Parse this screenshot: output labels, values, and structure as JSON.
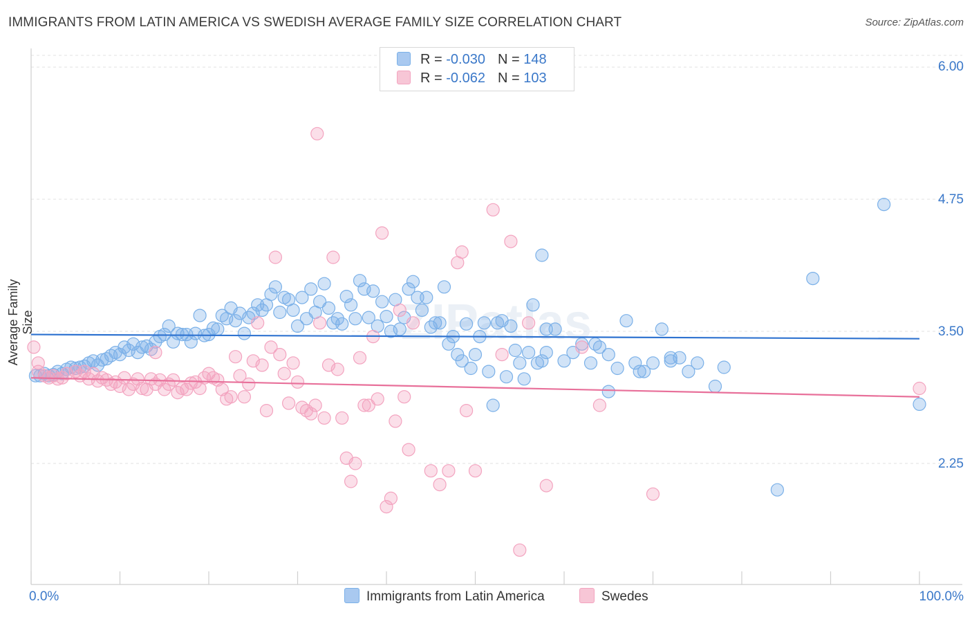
{
  "chart_data": {
    "type": "scatter",
    "title": "IMMIGRANTS FROM LATIN AMERICA VS SWEDISH AVERAGE FAMILY SIZE CORRELATION CHART",
    "source": "Source: ZipAtlas.com",
    "xlabel": "",
    "ylabel": "Average Family Size",
    "xlim": [
      0,
      100
    ],
    "ylim": [
      1.0,
      6.2
    ],
    "y_ticks": [
      2.25,
      3.5,
      4.75,
      6.0
    ],
    "y_tick_labels": [
      "2.25",
      "3.50",
      "4.75",
      "6.00"
    ],
    "x_tick_labels": [
      "0.0%",
      "100.0%"
    ],
    "watermark": "ZIPatlas",
    "legend_stats": [
      {
        "r_label": "R = ",
        "r_value": "-0.030",
        "n_label": "N = ",
        "n_value": "148"
      },
      {
        "r_label": "R = ",
        "r_value": "-0.062",
        "n_label": "N = ",
        "n_value": "103"
      }
    ],
    "series": [
      {
        "name": "Immigrants from Latin America",
        "color": "#7ab0e8",
        "line_color": "#2f73d0",
        "trend": {
          "x0": 0,
          "y0": 3.47,
          "x1": 100,
          "y1": 3.43
        },
        "points": [
          [
            0.5,
            3.08
          ],
          [
            1.0,
            3.08
          ],
          [
            1.5,
            3.1
          ],
          [
            2.0,
            3.08
          ],
          [
            2.5,
            3.09
          ],
          [
            3.0,
            3.12
          ],
          [
            3.5,
            3.1
          ],
          [
            4.0,
            3.14
          ],
          [
            4.5,
            3.16
          ],
          [
            5.0,
            3.15
          ],
          [
            5.5,
            3.16
          ],
          [
            6.0,
            3.17
          ],
          [
            6.5,
            3.2
          ],
          [
            7.0,
            3.22
          ],
          [
            7.5,
            3.18
          ],
          [
            8.0,
            3.23
          ],
          [
            8.5,
            3.24
          ],
          [
            9.0,
            3.27
          ],
          [
            9.5,
            3.3
          ],
          [
            10.0,
            3.28
          ],
          [
            10.5,
            3.35
          ],
          [
            11.0,
            3.32
          ],
          [
            11.5,
            3.38
          ],
          [
            12.0,
            3.3
          ],
          [
            12.5,
            3.35
          ],
          [
            13.0,
            3.36
          ],
          [
            13.5,
            3.33
          ],
          [
            14.0,
            3.4
          ],
          [
            14.5,
            3.45
          ],
          [
            15.0,
            3.47
          ],
          [
            15.5,
            3.55
          ],
          [
            16.0,
            3.4
          ],
          [
            16.5,
            3.48
          ],
          [
            17.0,
            3.47
          ],
          [
            17.5,
            3.47
          ],
          [
            18.0,
            3.4
          ],
          [
            18.5,
            3.48
          ],
          [
            19.0,
            3.65
          ],
          [
            19.5,
            3.46
          ],
          [
            20.0,
            3.47
          ],
          [
            20.5,
            3.53
          ],
          [
            21.0,
            3.52
          ],
          [
            21.5,
            3.65
          ],
          [
            22.0,
            3.62
          ],
          [
            22.5,
            3.72
          ],
          [
            23.0,
            3.6
          ],
          [
            23.5,
            3.67
          ],
          [
            24.0,
            3.48
          ],
          [
            24.5,
            3.63
          ],
          [
            25.0,
            3.67
          ],
          [
            25.5,
            3.75
          ],
          [
            26.0,
            3.7
          ],
          [
            26.5,
            3.75
          ],
          [
            27.0,
            3.85
          ],
          [
            27.5,
            3.92
          ],
          [
            28.0,
            3.68
          ],
          [
            28.5,
            3.82
          ],
          [
            29.0,
            3.8
          ],
          [
            29.5,
            3.7
          ],
          [
            30.0,
            3.55
          ],
          [
            30.5,
            3.82
          ],
          [
            31.0,
            3.62
          ],
          [
            31.5,
            3.9
          ],
          [
            32.0,
            3.68
          ],
          [
            32.5,
            3.78
          ],
          [
            33.0,
            3.95
          ],
          [
            33.5,
            3.72
          ],
          [
            34.0,
            3.58
          ],
          [
            34.5,
            3.62
          ],
          [
            35.0,
            3.57
          ],
          [
            35.5,
            3.83
          ],
          [
            36.0,
            3.75
          ],
          [
            36.5,
            3.62
          ],
          [
            37.0,
            3.98
          ],
          [
            37.5,
            3.9
          ],
          [
            38.0,
            3.63
          ],
          [
            38.5,
            3.88
          ],
          [
            39.0,
            3.55
          ],
          [
            39.5,
            3.78
          ],
          [
            40.0,
            3.64
          ],
          [
            40.5,
            3.5
          ],
          [
            41.0,
            3.8
          ],
          [
            41.5,
            3.52
          ],
          [
            42.0,
            3.63
          ],
          [
            42.5,
            3.9
          ],
          [
            43.0,
            3.97
          ],
          [
            43.5,
            3.82
          ],
          [
            44.0,
            3.7
          ],
          [
            44.5,
            3.82
          ],
          [
            45.0,
            3.54
          ],
          [
            45.5,
            3.58
          ],
          [
            46.0,
            3.58
          ],
          [
            46.5,
            3.92
          ],
          [
            47.0,
            3.38
          ],
          [
            47.5,
            3.45
          ],
          [
            48.0,
            3.28
          ],
          [
            48.5,
            3.22
          ],
          [
            49.0,
            3.57
          ],
          [
            49.5,
            3.15
          ],
          [
            50.0,
            3.28
          ],
          [
            50.5,
            3.45
          ],
          [
            51.0,
            3.58
          ],
          [
            51.5,
            3.12
          ],
          [
            52.0,
            2.8
          ],
          [
            52.5,
            3.58
          ],
          [
            53.0,
            3.6
          ],
          [
            53.5,
            3.07
          ],
          [
            54.0,
            3.55
          ],
          [
            54.5,
            3.32
          ],
          [
            55.0,
            3.2
          ],
          [
            55.5,
            3.05
          ],
          [
            56.0,
            3.3
          ],
          [
            56.5,
            3.75
          ],
          [
            57.0,
            3.2
          ],
          [
            57.5,
            3.22
          ],
          [
            58.0,
            3.3
          ],
          [
            59.0,
            3.52
          ],
          [
            60.0,
            3.22
          ],
          [
            61.0,
            3.3
          ],
          [
            62.0,
            3.38
          ],
          [
            63.0,
            3.2
          ],
          [
            64.0,
            3.35
          ],
          [
            65.0,
            3.28
          ],
          [
            66.0,
            3.15
          ],
          [
            67.0,
            3.6
          ],
          [
            68.0,
            3.2
          ],
          [
            69.0,
            3.12
          ],
          [
            70.0,
            3.2
          ],
          [
            71.0,
            3.52
          ],
          [
            72.0,
            3.25
          ],
          [
            73.0,
            3.25
          ],
          [
            74.0,
            3.12
          ],
          [
            75.0,
            3.2
          ],
          [
            77.0,
            2.98
          ],
          [
            78.0,
            3.16
          ],
          [
            84.0,
            2.0
          ],
          [
            88.0,
            4.0
          ],
          [
            96.0,
            4.7
          ],
          [
            100.0,
            2.81
          ],
          [
            57.5,
            4.22
          ],
          [
            65.0,
            2.93
          ],
          [
            68.5,
            3.12
          ],
          [
            72.0,
            3.22
          ],
          [
            58.0,
            3.52
          ],
          [
            63.5,
            3.38
          ]
        ]
      },
      {
        "name": "Swedes",
        "color": "#f3a3bf",
        "line_color": "#e8709a",
        "trend": {
          "x0": 0,
          "y0": 3.06,
          "x1": 100,
          "y1": 2.88
        },
        "points": [
          [
            0.3,
            3.35
          ],
          [
            0.8,
            3.12
          ],
          [
            1.5,
            3.08
          ],
          [
            2.0,
            3.06
          ],
          [
            2.5,
            3.08
          ],
          [
            3.0,
            3.05
          ],
          [
            3.5,
            3.06
          ],
          [
            4.0,
            3.1
          ],
          [
            5.0,
            3.12
          ],
          [
            5.5,
            3.08
          ],
          [
            6.0,
            3.12
          ],
          [
            6.5,
            3.05
          ],
          [
            7.0,
            3.1
          ],
          [
            7.5,
            3.03
          ],
          [
            8.0,
            3.06
          ],
          [
            8.5,
            3.04
          ],
          [
            9.0,
            3.0
          ],
          [
            9.5,
            3.02
          ],
          [
            10.0,
            2.98
          ],
          [
            10.5,
            3.06
          ],
          [
            11.0,
            2.95
          ],
          [
            11.5,
            3.0
          ],
          [
            12.0,
            3.05
          ],
          [
            12.5,
            2.96
          ],
          [
            13.0,
            2.95
          ],
          [
            13.5,
            3.05
          ],
          [
            14.0,
            3.0
          ],
          [
            14.5,
            3.04
          ],
          [
            15.0,
            2.95
          ],
          [
            15.5,
            3.0
          ],
          [
            16.0,
            3.04
          ],
          [
            16.5,
            2.92
          ],
          [
            17.0,
            2.96
          ],
          [
            17.5,
            2.95
          ],
          [
            18.0,
            3.01
          ],
          [
            18.5,
            3.02
          ],
          [
            19.0,
            2.96
          ],
          [
            19.5,
            3.06
          ],
          [
            20.0,
            3.1
          ],
          [
            20.5,
            3.06
          ],
          [
            21.0,
            3.04
          ],
          [
            21.5,
            2.95
          ],
          [
            22.0,
            2.86
          ],
          [
            22.5,
            2.88
          ],
          [
            23.0,
            3.26
          ],
          [
            23.5,
            3.08
          ],
          [
            24.0,
            2.88
          ],
          [
            24.5,
            3.0
          ],
          [
            25.0,
            3.22
          ],
          [
            25.5,
            3.58
          ],
          [
            26.0,
            3.18
          ],
          [
            26.5,
            2.75
          ],
          [
            27.0,
            3.35
          ],
          [
            27.5,
            4.2
          ],
          [
            28.0,
            3.28
          ],
          [
            28.5,
            3.1
          ],
          [
            29.0,
            2.82
          ],
          [
            29.5,
            3.2
          ],
          [
            30.0,
            3.02
          ],
          [
            30.5,
            2.78
          ],
          [
            31.0,
            2.75
          ],
          [
            31.5,
            2.72
          ],
          [
            32.0,
            2.8
          ],
          [
            32.5,
            3.58
          ],
          [
            33.0,
            2.68
          ],
          [
            33.5,
            3.18
          ],
          [
            34.0,
            4.2
          ],
          [
            34.5,
            3.14
          ],
          [
            35.0,
            2.68
          ],
          [
            35.5,
            2.3
          ],
          [
            36.0,
            2.08
          ],
          [
            36.5,
            2.25
          ],
          [
            37.0,
            3.25
          ],
          [
            37.5,
            2.8
          ],
          [
            38.0,
            2.8
          ],
          [
            38.5,
            3.45
          ],
          [
            39.0,
            2.86
          ],
          [
            39.5,
            4.43
          ],
          [
            40.0,
            1.84
          ],
          [
            40.5,
            1.92
          ],
          [
            41.0,
            2.65
          ],
          [
            41.5,
            3.7
          ],
          [
            42.0,
            2.88
          ],
          [
            42.5,
            2.38
          ],
          [
            43.0,
            3.58
          ],
          [
            45.0,
            2.18
          ],
          [
            46.0,
            2.05
          ],
          [
            47.0,
            2.18
          ],
          [
            48.0,
            4.15
          ],
          [
            48.5,
            4.25
          ],
          [
            49.0,
            2.75
          ],
          [
            50.0,
            2.18
          ],
          [
            52.0,
            4.65
          ],
          [
            53.0,
            3.28
          ],
          [
            54.0,
            4.35
          ],
          [
            55.0,
            1.43
          ],
          [
            56.0,
            3.58
          ],
          [
            58.0,
            2.04
          ],
          [
            62.0,
            3.35
          ],
          [
            64.0,
            2.8
          ],
          [
            70.0,
            1.96
          ],
          [
            100.0,
            2.96
          ],
          [
            32.2,
            5.37
          ],
          [
            14.0,
            3.3
          ],
          [
            0.8,
            3.2
          ]
        ]
      }
    ]
  },
  "bottom_legend": [
    {
      "label": "Immigrants from Latin America",
      "color": "#a9c9f0"
    },
    {
      "label": "Swedes",
      "color": "#f7c6d6"
    }
  ]
}
